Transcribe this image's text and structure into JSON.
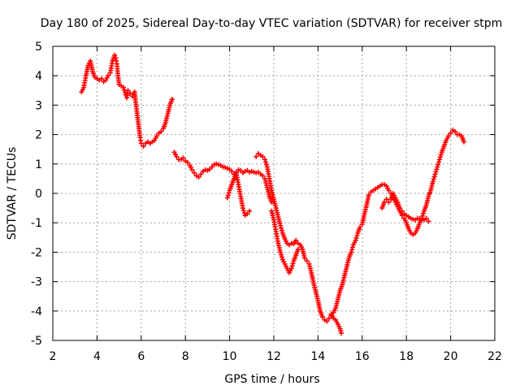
{
  "chart_data": {
    "type": "scatter",
    "title": "Day 180 of 2025, Sidereal Day-to-day VTEC variation (SDTVAR) for receiver stpm",
    "xlabel": "GPS time / hours",
    "ylabel": "SDTVAR / TECUs",
    "xlim": [
      2,
      22
    ],
    "ylim": [
      -5,
      5
    ],
    "xticks": [
      "2",
      "4",
      "6",
      "8",
      "10",
      "12",
      "14",
      "16",
      "18",
      "20",
      "22"
    ],
    "yticks": [
      "-5",
      "-4",
      "-3",
      "-2",
      "-1",
      "0",
      "1",
      "2",
      "3",
      "4",
      "5"
    ],
    "grid": true,
    "marker": "plus",
    "color": "#ff0000",
    "series": [
      {
        "points": [
          [
            3.3,
            3.45
          ],
          [
            3.4,
            3.6
          ],
          [
            3.5,
            4.0
          ],
          [
            3.6,
            4.35
          ],
          [
            3.7,
            4.5
          ],
          [
            3.8,
            4.15
          ],
          [
            3.9,
            3.95
          ],
          [
            4.0,
            3.9
          ],
          [
            4.1,
            3.85
          ],
          [
            4.2,
            3.9
          ],
          [
            4.3,
            3.8
          ],
          [
            4.4,
            3.85
          ],
          [
            4.5,
            4.0
          ],
          [
            4.6,
            4.1
          ],
          [
            4.7,
            4.5
          ],
          [
            4.8,
            4.7
          ],
          [
            4.85,
            4.6
          ],
          [
            4.9,
            4.4
          ],
          [
            4.95,
            4.0
          ],
          [
            5.0,
            3.7
          ],
          [
            5.1,
            3.65
          ],
          [
            5.2,
            3.6
          ],
          [
            5.3,
            3.35
          ],
          [
            5.35,
            3.25
          ],
          [
            5.4,
            3.5
          ],
          [
            5.5,
            3.4
          ],
          [
            5.6,
            3.3
          ],
          [
            5.7,
            3.45
          ],
          [
            5.75,
            3.1
          ],
          [
            5.8,
            2.8
          ],
          [
            5.85,
            2.5
          ],
          [
            5.9,
            2.2
          ],
          [
            5.95,
            1.9
          ],
          [
            6.0,
            1.7
          ],
          [
            6.1,
            1.6
          ],
          [
            6.2,
            1.7
          ],
          [
            6.3,
            1.75
          ],
          [
            6.4,
            1.7
          ],
          [
            6.5,
            1.75
          ],
          [
            6.6,
            1.8
          ],
          [
            6.7,
            1.95
          ],
          [
            6.8,
            2.05
          ],
          [
            6.9,
            2.1
          ],
          [
            7.0,
            2.2
          ],
          [
            7.1,
            2.4
          ],
          [
            7.2,
            2.7
          ],
          [
            7.3,
            3.0
          ],
          [
            7.4,
            3.2
          ]
        ]
      },
      {
        "points": [
          [
            7.5,
            1.4
          ],
          [
            7.6,
            1.25
          ],
          [
            7.7,
            1.15
          ],
          [
            7.8,
            1.15
          ],
          [
            7.9,
            1.2
          ],
          [
            8.0,
            1.1
          ],
          [
            8.1,
            1.05
          ],
          [
            8.2,
            0.95
          ],
          [
            8.3,
            0.8
          ],
          [
            8.4,
            0.7
          ],
          [
            8.5,
            0.6
          ],
          [
            8.6,
            0.55
          ],
          [
            8.7,
            0.65
          ],
          [
            8.8,
            0.75
          ],
          [
            8.9,
            0.8
          ],
          [
            9.0,
            0.78
          ],
          [
            9.1,
            0.82
          ],
          [
            9.2,
            0.9
          ],
          [
            9.3,
            0.98
          ],
          [
            9.4,
            1.0
          ],
          [
            9.5,
            0.98
          ],
          [
            9.6,
            0.95
          ],
          [
            9.7,
            0.9
          ],
          [
            9.8,
            0.88
          ],
          [
            9.9,
            0.85
          ],
          [
            10.0,
            0.82
          ],
          [
            10.1,
            0.75
          ],
          [
            10.2,
            0.65
          ],
          [
            10.3,
            0.72
          ],
          [
            10.4,
            0.8
          ],
          [
            10.5,
            0.78
          ],
          [
            10.6,
            0.7
          ],
          [
            10.7,
            0.75
          ],
          [
            10.8,
            0.78
          ],
          [
            10.9,
            0.72
          ],
          [
            11.0,
            0.75
          ],
          [
            11.1,
            0.72
          ],
          [
            11.2,
            0.7
          ],
          [
            11.3,
            0.72
          ],
          [
            11.4,
            0.65
          ],
          [
            11.5,
            0.6
          ],
          [
            11.6,
            0.5
          ],
          [
            11.7,
            0.2
          ],
          [
            11.8,
            -0.1
          ],
          [
            11.9,
            -0.3
          ]
        ]
      },
      {
        "points": [
          [
            9.9,
            -0.15
          ],
          [
            10.0,
            0.1
          ],
          [
            10.1,
            0.3
          ],
          [
            10.2,
            0.5
          ],
          [
            10.3,
            0.7
          ],
          [
            10.4,
            0.3
          ],
          [
            10.5,
            -0.1
          ],
          [
            10.6,
            -0.5
          ],
          [
            10.7,
            -0.75
          ],
          [
            10.8,
            -0.7
          ],
          [
            10.9,
            -0.6
          ]
        ]
      },
      {
        "points": [
          [
            11.2,
            1.25
          ],
          [
            11.3,
            1.35
          ],
          [
            11.4,
            1.3
          ],
          [
            11.5,
            1.25
          ],
          [
            11.6,
            1.15
          ],
          [
            11.7,
            0.9
          ],
          [
            11.8,
            0.5
          ],
          [
            11.9,
            0.1
          ],
          [
            12.0,
            -0.2
          ],
          [
            12.1,
            -0.5
          ],
          [
            12.2,
            -0.8
          ],
          [
            12.3,
            -1.1
          ],
          [
            12.4,
            -1.35
          ],
          [
            12.5,
            -1.55
          ],
          [
            12.6,
            -1.7
          ],
          [
            12.7,
            -1.75
          ],
          [
            12.8,
            -1.7
          ],
          [
            12.9,
            -1.72
          ],
          [
            13.0,
            -1.6
          ],
          [
            13.1,
            -1.7
          ],
          [
            13.2,
            -1.75
          ],
          [
            13.3,
            -1.9
          ],
          [
            13.4,
            -2.2
          ],
          [
            13.5,
            -2.3
          ],
          [
            13.6,
            -2.4
          ],
          [
            13.7,
            -2.7
          ],
          [
            13.8,
            -3.05
          ],
          [
            13.9,
            -3.35
          ],
          [
            14.0,
            -3.65
          ],
          [
            14.1,
            -4.0
          ],
          [
            14.2,
            -4.2
          ],
          [
            14.3,
            -4.3
          ],
          [
            14.4,
            -4.35
          ],
          [
            14.5,
            -4.25
          ],
          [
            14.6,
            -4.15
          ],
          [
            14.7,
            -4.05
          ],
          [
            14.8,
            -3.9
          ],
          [
            14.9,
            -3.6
          ],
          [
            15.0,
            -3.3
          ],
          [
            15.1,
            -3.1
          ]
        ]
      },
      {
        "points": [
          [
            11.9,
            -0.6
          ],
          [
            12.0,
            -0.9
          ],
          [
            12.1,
            -1.3
          ],
          [
            12.2,
            -1.7
          ],
          [
            12.3,
            -2.0
          ],
          [
            12.4,
            -2.25
          ],
          [
            12.5,
            -2.4
          ],
          [
            12.6,
            -2.55
          ],
          [
            12.7,
            -2.7
          ],
          [
            12.8,
            -2.55
          ],
          [
            12.9,
            -2.3
          ],
          [
            13.0,
            -2.1
          ],
          [
            13.1,
            -1.9
          ]
        ]
      },
      {
        "points": [
          [
            14.6,
            -4.1
          ],
          [
            14.7,
            -4.25
          ],
          [
            14.8,
            -4.3
          ],
          [
            14.9,
            -4.45
          ],
          [
            15.0,
            -4.6
          ],
          [
            15.05,
            -4.75
          ]
        ]
      },
      {
        "points": [
          [
            15.1,
            -3.1
          ],
          [
            15.2,
            -2.8
          ],
          [
            15.3,
            -2.5
          ],
          [
            15.4,
            -2.2
          ],
          [
            15.5,
            -2.0
          ],
          [
            15.6,
            -1.75
          ],
          [
            15.7,
            -1.6
          ],
          [
            15.8,
            -1.35
          ],
          [
            15.9,
            -1.15
          ],
          [
            16.0,
            -1.05
          ],
          [
            16.1,
            -0.7
          ],
          [
            16.2,
            -0.4
          ],
          [
            16.3,
            -0.05
          ],
          [
            16.4,
            0.05
          ],
          [
            16.5,
            0.1
          ],
          [
            16.6,
            0.15
          ],
          [
            16.7,
            0.2
          ],
          [
            16.8,
            0.25
          ],
          [
            16.9,
            0.3
          ],
          [
            17.0,
            0.3
          ],
          [
            17.1,
            0.25
          ],
          [
            17.2,
            0.1
          ],
          [
            17.3,
            0.0
          ],
          [
            17.4,
            -0.15
          ],
          [
            17.5,
            -0.3
          ],
          [
            17.6,
            -0.45
          ],
          [
            17.7,
            -0.6
          ],
          [
            17.8,
            -0.75
          ],
          [
            17.9,
            -0.85
          ],
          [
            18.0,
            -1.0
          ],
          [
            18.1,
            -1.2
          ],
          [
            18.2,
            -1.35
          ],
          [
            18.3,
            -1.4
          ],
          [
            18.4,
            -1.35
          ],
          [
            18.5,
            -1.2
          ],
          [
            18.6,
            -1.0
          ],
          [
            18.7,
            -0.85
          ],
          [
            18.8,
            -0.6
          ],
          [
            18.9,
            -0.4
          ],
          [
            19.0,
            -0.1
          ],
          [
            19.1,
            0.1
          ],
          [
            19.2,
            0.4
          ],
          [
            19.3,
            0.65
          ],
          [
            19.4,
            0.9
          ],
          [
            19.5,
            1.15
          ],
          [
            19.6,
            1.4
          ],
          [
            19.7,
            1.6
          ],
          [
            19.8,
            1.8
          ],
          [
            19.9,
            1.95
          ],
          [
            20.0,
            2.05
          ],
          [
            20.1,
            2.15
          ],
          [
            20.2,
            2.1
          ],
          [
            20.3,
            2.0
          ],
          [
            20.4,
            2.0
          ],
          [
            20.5,
            1.95
          ],
          [
            20.6,
            1.75
          ]
        ]
      },
      {
        "points": [
          [
            16.9,
            -0.5
          ],
          [
            17.0,
            -0.3
          ],
          [
            17.1,
            -0.2
          ],
          [
            17.2,
            -0.3
          ],
          [
            17.3,
            -0.2
          ],
          [
            17.4,
            0.0
          ],
          [
            17.5,
            -0.15
          ],
          [
            17.6,
            -0.3
          ],
          [
            17.7,
            -0.5
          ],
          [
            17.8,
            -0.6
          ],
          [
            17.9,
            -0.7
          ],
          [
            18.0,
            -0.75
          ],
          [
            18.1,
            -0.8
          ],
          [
            18.2,
            -0.85
          ],
          [
            18.3,
            -0.88
          ],
          [
            18.4,
            -0.9
          ],
          [
            18.5,
            -0.85
          ],
          [
            18.6,
            -0.85
          ],
          [
            18.7,
            -0.88
          ],
          [
            18.8,
            -0.9
          ],
          [
            18.9,
            -0.85
          ],
          [
            19.0,
            -0.95
          ]
        ]
      }
    ]
  }
}
